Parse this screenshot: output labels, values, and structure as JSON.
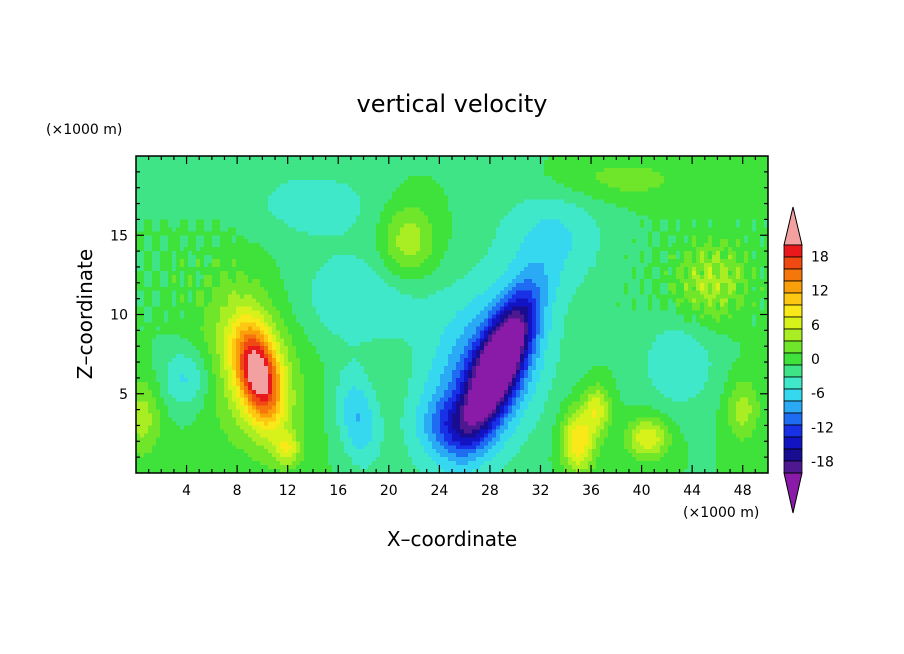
{
  "chart_data": {
    "type": "heatmap",
    "title": "vertical velocity",
    "xlabel": "X–coordinate",
    "ylabel": "Z–coordinate",
    "x_unit": "(×1000 m)",
    "y_unit": "(×1000 m)",
    "xlim": [
      0,
      50
    ],
    "ylim": [
      0,
      20
    ],
    "x_ticks": [
      4,
      8,
      12,
      16,
      20,
      24,
      28,
      32,
      36,
      40,
      44,
      48
    ],
    "y_ticks": [
      5,
      10,
      15
    ],
    "colorbar": {
      "ticks": [
        18,
        12,
        6,
        0,
        -6,
        -12,
        -18
      ],
      "levels": [
        21,
        19,
        17,
        15,
        13,
        11,
        9,
        7,
        5,
        3,
        1,
        -1,
        -3,
        -5,
        -7,
        -9,
        -11,
        -13,
        -15,
        -17,
        -19
      ],
      "colors": [
        "#f3a0a0",
        "#e8181c",
        "#f04a12",
        "#f5760a",
        "#fa9f0a",
        "#fdc812",
        "#f9e918",
        "#d7f11a",
        "#a8ee22",
        "#70e62a",
        "#3ee23a",
        "#3ee486",
        "#3ee8c8",
        "#36d8f0",
        "#2aaaf4",
        "#1e6cf2",
        "#1830e6",
        "#1214c4",
        "#180c90",
        "#4e1890",
        "#8a1aa8"
      ],
      "extend": "both"
    },
    "features": [
      {
        "name": "updraft",
        "x": 9.7,
        "z": 6.2,
        "peak": 18
      },
      {
        "name": "downdraft",
        "x": 28.8,
        "z": 7.0,
        "peak": -18
      },
      {
        "name": "updraft",
        "x": 35.0,
        "z": 2.0,
        "peak": 10
      },
      {
        "name": "updraft",
        "x": 40.5,
        "z": 2.0,
        "peak": 8
      },
      {
        "name": "updraft",
        "x": 21.5,
        "z": 14.5,
        "peak": 6
      }
    ]
  }
}
